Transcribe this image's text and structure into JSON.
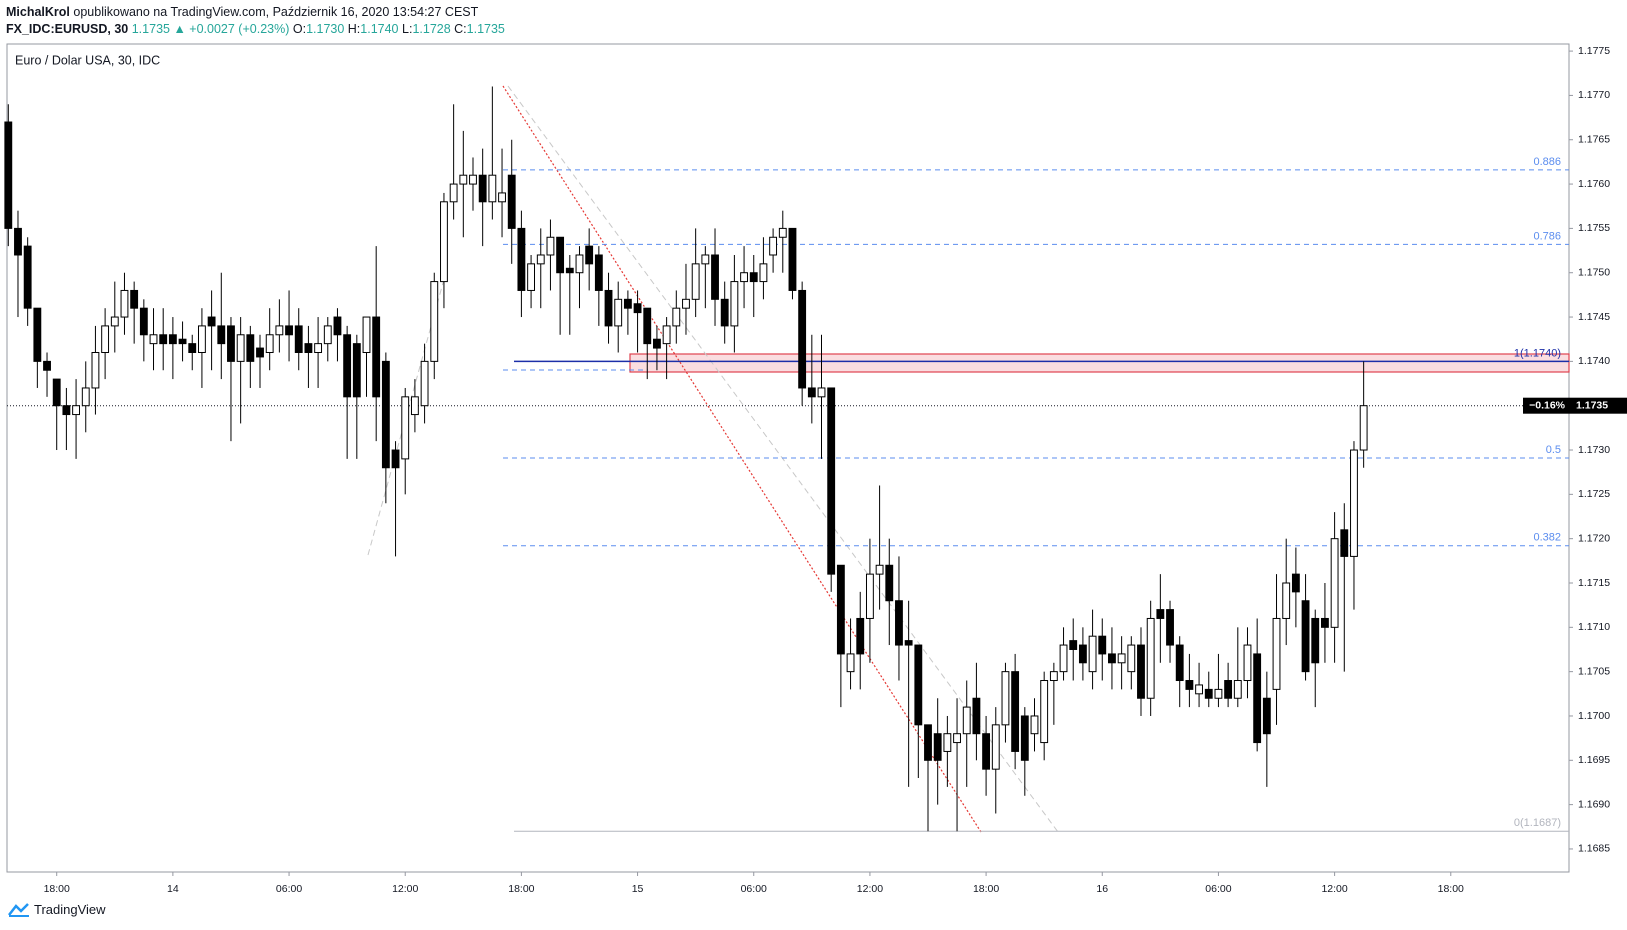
{
  "header": {
    "user": "MichalKrol",
    "published": "opublikowano na TradingView.com, Październik 16, 2020 13:54:27 CEST",
    "symbol": "FX_IDC:EURUSD, 30",
    "last": "1.1735",
    "change": "▲ +0.0027 (+0.23%)",
    "ohlc": [
      {
        "key": "O:",
        "text": "1.1730"
      },
      {
        "key": "H:",
        "text": "1.1740"
      },
      {
        "key": "L:",
        "text": "1.1728"
      },
      {
        "key": "C:",
        "text": "1.1735"
      }
    ]
  },
  "footer": {
    "brand": "TradingView"
  },
  "chart_data": {
    "type": "candlestick",
    "title": "Euro / Dolar USA, 30, IDC",
    "categories": [
      null,
      null,
      null,
      null,
      null,
      "18:00",
      null,
      null,
      null,
      null,
      null,
      null,
      null,
      null,
      null,
      null,
      null,
      "14",
      null,
      null,
      null,
      null,
      null,
      null,
      null,
      null,
      null,
      null,
      null,
      "06:00",
      null,
      null,
      null,
      null,
      null,
      null,
      null,
      null,
      null,
      null,
      null,
      "12:00",
      null,
      null,
      null,
      null,
      null,
      null,
      null,
      null,
      null,
      null,
      null,
      "18:00",
      null,
      null,
      null,
      null,
      null,
      null,
      null,
      null,
      null,
      null,
      null,
      "15",
      null,
      null,
      null,
      null,
      null,
      null,
      null,
      null,
      null,
      null,
      null,
      "06:00",
      null,
      null,
      null,
      null,
      null,
      null,
      null,
      null,
      null,
      null,
      null,
      "12:00",
      null,
      null,
      null,
      null,
      null,
      null,
      null,
      null,
      null,
      null,
      null,
      "18:00",
      null,
      null,
      null,
      null,
      null,
      null,
      null,
      null,
      null,
      null,
      null,
      "16",
      null,
      null,
      null,
      null,
      null,
      null,
      null,
      null,
      null,
      null,
      null,
      "06:00",
      null,
      null,
      null,
      null,
      null,
      null,
      null,
      null,
      null,
      null,
      null,
      "12:00",
      null,
      null,
      null,
      null,
      null,
      null,
      null,
      null,
      null,
      null,
      null,
      "18:00"
    ],
    "open": [
      1.1767,
      1.1755,
      1.1753,
      1.1746,
      1.174,
      1.1738,
      1.1735,
      1.1734,
      1.1735,
      1.1737,
      1.1741,
      1.1744,
      1.1745,
      1.1748,
      1.1746,
      1.1742,
      1.1743,
      1.1743,
      1.17425,
      1.1742,
      1.1741,
      1.1745,
      1.1744,
      1.1744,
      1.174,
      1.1743,
      1.17415,
      1.1741,
      1.1743,
      1.1744,
      1.1744,
      1.1742,
      1.1741,
      1.1742,
      1.1745,
      1.1743,
      1.1742,
      1.1741,
      1.1745,
      1.174,
      1.173,
      1.1729,
      1.1734,
      1.1735,
      1.174,
      1.1749,
      1.1758,
      1.176,
      1.176,
      1.1761,
      1.1758,
      1.1758,
      1.1761,
      1.1755,
      1.1748,
      1.1751,
      1.1752,
      1.1754,
      1.17505,
      1.175,
      1.1753,
      1.1752,
      1.1748,
      1.1744,
      1.1747,
      1.17465,
      1.1746,
      1.17425,
      1.1742,
      1.1744,
      1.1746,
      1.1747,
      1.1751,
      1.1752,
      1.1747,
      1.1744,
      1.1749,
      1.175,
      1.1749,
      1.1752,
      1.1754,
      1.1755,
      1.1748,
      1.1737,
      1.1736,
      1.1737,
      1.1717,
      1.1705,
      1.1711,
      1.1711,
      1.1716,
      1.1717,
      1.1713,
      1.17085,
      1.1708,
      1.1699,
      1.1698,
      1.1696,
      1.1697,
      1.1698,
      1.1702,
      1.1698,
      1.1694,
      1.1699,
      1.1705,
      1.17,
      1.1698,
      1.1697,
      1.1704,
      1.1705,
      1.17085,
      1.1708,
      1.1705,
      1.1709,
      1.1707,
      1.1706,
      1.1705,
      1.1708,
      1.1702,
      1.1712,
      1.1712,
      1.1708,
      1.1704,
      1.17025,
      1.1703,
      1.1702,
      1.1704,
      1.1702,
      1.1704,
      1.1707,
      1.1702,
      1.1703,
      1.1711,
      1.1716,
      1.1713,
      1.1711,
      1.1711,
      1.171,
      1.1721,
      1.1718,
      1.173,
      null,
      null,
      null,
      null,
      null,
      null,
      null,
      null,
      null
    ],
    "high": [
      1.1769,
      1.1757,
      1.1754,
      1.1746,
      1.1741,
      1.1738,
      1.1737,
      1.1738,
      1.174,
      1.1744,
      1.1746,
      1.1749,
      1.175,
      1.1749,
      1.1747,
      1.1746,
      1.1746,
      1.1745,
      1.17445,
      1.1743,
      1.1746,
      1.1748,
      1.175,
      1.1745,
      1.1745,
      1.1744,
      1.1743,
      1.1746,
      1.1747,
      1.1748,
      1.1746,
      1.1744,
      1.1745,
      1.1745,
      1.1746,
      1.1744,
      1.1743,
      1.1745,
      1.1753,
      1.1741,
      1.1731,
      1.1737,
      1.1738,
      1.1742,
      1.175,
      1.1759,
      1.1769,
      1.1766,
      1.1763,
      1.1764,
      1.1771,
      1.1764,
      1.1765,
      1.1757,
      1.1752,
      1.1755,
      1.1756,
      1.1754,
      1.1752,
      1.1753,
      1.1755,
      1.1753,
      1.175,
      1.1749,
      1.1748,
      1.1748,
      1.1746,
      1.1744,
      1.1745,
      1.1748,
      1.1751,
      1.1755,
      1.1753,
      1.1755,
      1.1749,
      1.1752,
      1.1753,
      1.1752,
      1.1754,
      1.1755,
      1.1757,
      1.1755,
      1.1749,
      1.1743,
      1.1743,
      1.1737,
      1.1717,
      1.1711,
      1.1714,
      1.172,
      1.1726,
      1.172,
      1.1718,
      1.1713,
      1.1708,
      1.1699,
      1.1702,
      1.17,
      1.1702,
      1.1704,
      1.1706,
      1.17,
      1.1701,
      1.1706,
      1.1707,
      1.1701,
      1.1702,
      1.1705,
      1.1706,
      1.171,
      1.1711,
      1.171,
      1.1712,
      1.1711,
      1.171,
      1.1709,
      1.1709,
      1.171,
      1.1713,
      1.1716,
      1.1713,
      1.1709,
      1.1707,
      1.1706,
      1.1705,
      1.1707,
      1.1706,
      1.171,
      1.171,
      1.1711,
      1.1705,
      1.1716,
      1.172,
      1.1719,
      1.1716,
      1.1712,
      1.1715,
      1.1723,
      1.1724,
      1.1731,
      1.174,
      null,
      null,
      null,
      null,
      null,
      null,
      null,
      null,
      null
    ],
    "low": [
      1.1753,
      1.1745,
      1.1744,
      1.1737,
      1.1736,
      1.173,
      1.173,
      1.1729,
      1.1732,
      1.1734,
      1.1738,
      1.1741,
      1.1743,
      1.1742,
      1.174,
      1.1739,
      1.1739,
      1.1738,
      1.174,
      1.1739,
      1.1737,
      1.1739,
      1.1738,
      1.1731,
      1.1733,
      1.1737,
      1.1737,
      1.1739,
      1.1741,
      1.174,
      1.1739,
      1.1737,
      1.1737,
      1.174,
      1.174,
      1.1729,
      1.1729,
      1.1736,
      1.1731,
      1.1724,
      1.1718,
      1.1725,
      1.1732,
      1.1733,
      1.1738,
      1.1746,
      1.1756,
      1.1754,
      1.1757,
      1.1753,
      1.1756,
      1.1754,
      1.1751,
      1.1745,
      1.1746,
      1.1746,
      1.1748,
      1.1743,
      1.1743,
      1.1746,
      1.1748,
      1.1744,
      1.1742,
      1.1741,
      1.1743,
      1.1741,
      1.1738,
      1.1739,
      1.1738,
      1.1742,
      1.1743,
      1.1745,
      1.1746,
      1.1744,
      1.1742,
      1.1741,
      1.1746,
      1.1745,
      1.1747,
      1.175,
      1.175,
      1.1747,
      1.1735,
      1.1733,
      1.1729,
      1.1714,
      1.1701,
      1.1703,
      1.1703,
      1.1706,
      1.1712,
      1.1708,
      1.1704,
      1.1692,
      1.1693,
      1.1687,
      1.169,
      1.1692,
      1.1687,
      1.1692,
      1.1695,
      1.1691,
      1.1689,
      1.1697,
      1.1694,
      1.1691,
      1.1696,
      1.1695,
      1.1699,
      1.1704,
      1.1704,
      1.1704,
      1.1703,
      1.1704,
      1.1703,
      1.1703,
      1.1703,
      1.17,
      1.17,
      1.1706,
      1.1706,
      1.1701,
      1.1701,
      1.1701,
      1.1701,
      1.1701,
      1.1701,
      1.1701,
      1.1702,
      1.1696,
      1.1692,
      1.1699,
      1.1708,
      1.171,
      1.1704,
      1.1701,
      1.1706,
      1.1706,
      1.1705,
      1.1712,
      1.1728,
      null,
      null,
      null,
      null,
      null,
      null,
      null,
      null,
      null
    ],
    "close": [
      1.1755,
      1.1752,
      1.1746,
      1.174,
      1.1739,
      1.1735,
      1.1734,
      1.1735,
      1.1737,
      1.1741,
      1.1744,
      1.1745,
      1.1748,
      1.1746,
      1.1743,
      1.1743,
      1.1742,
      1.1742,
      1.1742,
      1.1741,
      1.1744,
      1.1744,
      1.1742,
      1.174,
      1.1743,
      1.174,
      1.17405,
      1.1743,
      1.1744,
      1.1743,
      1.1741,
      1.1741,
      1.1742,
      1.1744,
      1.1743,
      1.1736,
      1.1736,
      1.1745,
      1.1736,
      1.1728,
      1.1728,
      1.1736,
      1.1736,
      1.174,
      1.1749,
      1.1758,
      1.176,
      1.1761,
      1.1761,
      1.1758,
      1.1761,
      1.1759,
      1.1755,
      1.1748,
      1.1751,
      1.1752,
      1.1754,
      1.175,
      1.175,
      1.1752,
      1.1751,
      1.1748,
      1.1744,
      1.1747,
      1.1746,
      1.17455,
      1.1742,
      1.17415,
      1.1744,
      1.1746,
      1.1747,
      1.1751,
      1.1752,
      1.1747,
      1.1744,
      1.1749,
      1.175,
      1.1749,
      1.1751,
      1.1754,
      1.1755,
      1.1748,
      1.1737,
      1.1736,
      1.1737,
      1.1716,
      1.1707,
      1.1707,
      1.1707,
      1.1716,
      1.1717,
      1.1713,
      1.1708,
      1.1708,
      1.1699,
      1.1695,
      1.1695,
      1.1698,
      1.1698,
      1.1701,
      1.1698,
      1.1694,
      1.1699,
      1.1705,
      1.1696,
      1.1695,
      1.17,
      1.1704,
      1.1705,
      1.1708,
      1.17075,
      1.1706,
      1.1709,
      1.1707,
      1.1706,
      1.1707,
      1.1708,
      1.1702,
      1.1711,
      1.1711,
      1.1708,
      1.1704,
      1.1703,
      1.17035,
      1.1702,
      1.1703,
      1.1702,
      1.1704,
      1.1708,
      1.1697,
      1.1698,
      1.1711,
      1.1715,
      1.1714,
      1.1705,
      1.1706,
      1.171,
      1.172,
      1.1718,
      1.173,
      1.1735,
      null,
      null,
      null,
      null,
      null,
      null,
      null,
      null,
      null
    ],
    "up_color": "#ffffff",
    "down_color": "#000000",
    "wick_color": "#000000",
    "ylim": [
      1.16824,
      1.17758
    ],
    "yticks": [
      1.1685,
      {
        "value": 1.169,
        "label": "1.1690"
      },
      1.1695,
      {
        "value": 1.17,
        "label": "1.1700"
      },
      1.1705,
      {
        "value": 1.171,
        "label": "1.1710"
      },
      1.1715,
      {
        "value": 1.172,
        "label": "1.1720"
      },
      1.1725,
      {
        "value": 1.173,
        "label": "1.1730"
      },
      1.1735,
      {
        "value": 1.174,
        "label": "1.1740"
      },
      1.1745,
      {
        "value": 1.175,
        "label": "1.1750"
      },
      1.1755,
      {
        "value": 1.176,
        "label": "1.1760"
      },
      1.1765,
      {
        "value": 1.177,
        "label": "1.1770"
      },
      1.1775
    ],
    "grid": false,
    "fib_levels": [
      {
        "label": "0.886",
        "value": 1.17616,
        "color": "#5b8def"
      },
      {
        "label": "0.786",
        "value": 1.17532,
        "color": "#5b8def"
      },
      {
        "label": "1(1.1740)",
        "value": 1.174,
        "color": "#1c2fa8"
      },
      {
        "label": "0.5",
        "value": 1.17291,
        "color": "#5b8def"
      },
      {
        "label": "0.382",
        "value": 1.17192,
        "color": "#5b8def"
      },
      {
        "label": "0(1.1687)",
        "value": 1.1687,
        "color": "#b2b5be"
      }
    ],
    "last_price": {
      "change_label": "−0.16%",
      "value": 1.1735
    }
  }
}
